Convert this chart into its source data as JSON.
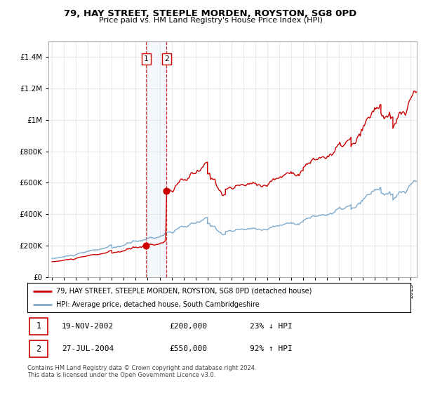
{
  "title": "79, HAY STREET, STEEPLE MORDEN, ROYSTON, SG8 0PD",
  "subtitle": "Price paid vs. HM Land Registry's House Price Index (HPI)",
  "ylabel_ticks": [
    "£0",
    "£200K",
    "£400K",
    "£600K",
    "£800K",
    "£1M",
    "£1.2M",
    "£1.4M"
  ],
  "ylabel_values": [
    0,
    200000,
    400000,
    600000,
    800000,
    1000000,
    1200000,
    1400000
  ],
  "ylim": [
    0,
    1500000
  ],
  "legend_line1": "79, HAY STREET, STEEPLE MORDEN, ROYSTON, SG8 0PD (detached house)",
  "legend_line2": "HPI: Average price, detached house, South Cambridgeshire",
  "transaction1_label": "1",
  "transaction1_date": "19-NOV-2002",
  "transaction1_price": "£200,000",
  "transaction1_hpi": "23% ↓ HPI",
  "transaction2_label": "2",
  "transaction2_date": "27-JUL-2004",
  "transaction2_price": "£550,000",
  "transaction2_hpi": "92% ↑ HPI",
  "footer": "Contains HM Land Registry data © Crown copyright and database right 2024.\nThis data is licensed under the Open Government Licence v3.0.",
  "red_color": "#cc0000",
  "blue_color": "#7faacc",
  "transaction1_x": 2002.88,
  "transaction1_y": 200000,
  "transaction2_x": 2004.58,
  "transaction2_y": 550000,
  "xlim_left": 1994.7,
  "xlim_right": 2025.5
}
